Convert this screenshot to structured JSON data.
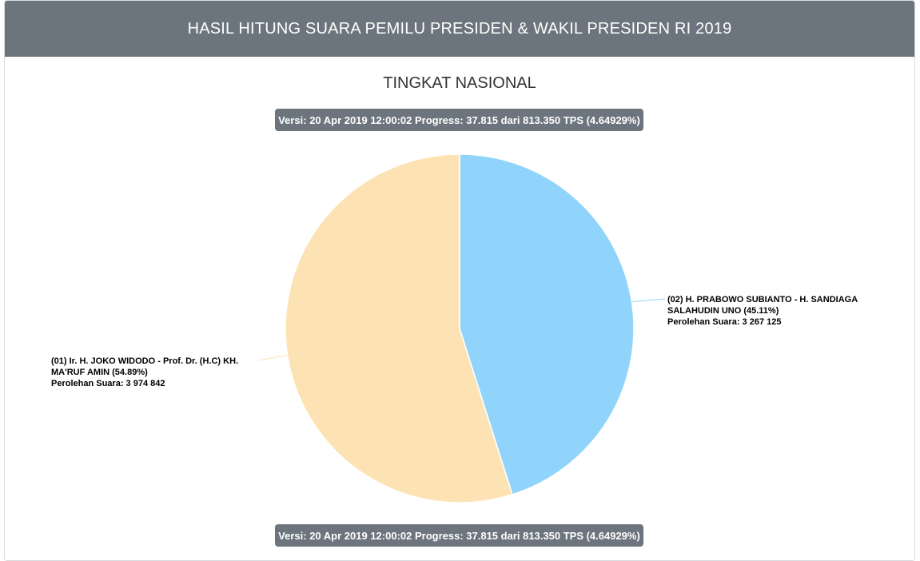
{
  "header": {
    "title": "HASIL HITUNG SUARA PEMILU PRESIDEN & WAKIL PRESIDEN RI 2019"
  },
  "subtitle": "TINGKAT NASIONAL",
  "version_badge": "Versi: 20 Apr 2019 12:00:02 Progress: 37.815 dari 813.350 TPS (4.64929%)",
  "chart_data": {
    "type": "pie",
    "title": "TINGKAT NASIONAL",
    "series": [
      {
        "label_line1": "(01) Ir. H. JOKO WIDODO - Prof. Dr. (H.C) KH.",
        "label_line2": "MA'RUF AMIN (54.89%)",
        "votes_label": "Perolehan Suara: 3 974 842",
        "percent": 54.89,
        "votes": 3974842,
        "color": "#fde3b3"
      },
      {
        "label_line1": "(02) H. PRABOWO SUBIANTO - H. SANDIAGA",
        "label_line2": "SALAHUDIN UNO (45.11%)",
        "votes_label": "Perolehan Suara: 3 267 125",
        "percent": 45.11,
        "votes": 3267125,
        "color": "#90d4fc"
      }
    ]
  }
}
